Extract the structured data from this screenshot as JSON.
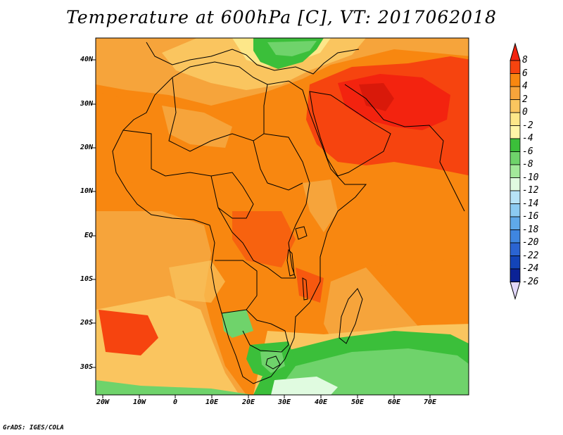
{
  "title": "Temperature at 600hPa [C], VT: 2017062018",
  "credit": "GrADS: IGES/COLA",
  "lat_labels": [
    "40N",
    "30N",
    "20N",
    "10N",
    "EQ",
    "10S",
    "20S",
    "30S"
  ],
  "lon_labels": [
    "20W",
    "10W",
    "0",
    "10E",
    "20E",
    "30E",
    "40E",
    "50E",
    "60E",
    "70E"
  ],
  "colorbar": {
    "labels": [
      "8",
      "6",
      "4",
      "2",
      "0",
      "-2",
      "-4",
      "-6",
      "-8",
      "-10",
      "-12",
      "-14",
      "-16",
      "-18",
      "-20",
      "-22",
      "-24",
      "-26"
    ],
    "colors": [
      "#f3230f",
      "#f6440f",
      "#f88710",
      "#f6a43b",
      "#fac55f",
      "#fde789",
      "#fff6a8",
      "#3bbf3a",
      "#6fd36b",
      "#a3e99b",
      "#e0fbe0",
      "#b7e3f7",
      "#8ccbf2",
      "#5fa9e9",
      "#3f86e0",
      "#2b64d2",
      "#1344b8",
      "#0b2296",
      "#0a0d70",
      "#e2d8fb"
    ]
  },
  "map": {
    "region": "Africa and Middle East",
    "lat_range": [
      -36,
      44
    ],
    "lon_range": [
      -20,
      80
    ],
    "unit": "C"
  }
}
